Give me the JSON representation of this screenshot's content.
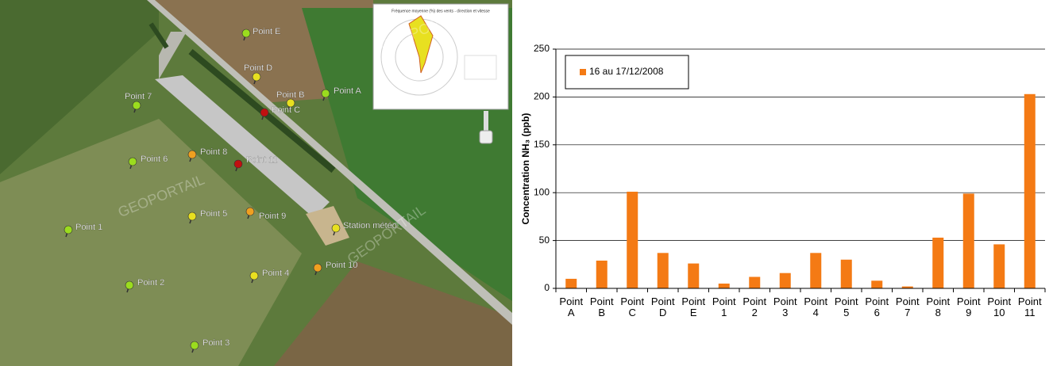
{
  "map": {
    "watermarks": [
      "GEOPORTAIL",
      "GEOPORTAIL",
      "GEOPORTAIL"
    ],
    "inset_title": "Fréquence moyenne (%) des vents - direction et vitesse",
    "labels": [
      {
        "text": "Point E",
        "color": "#9bdc1e"
      },
      {
        "text": "Point D",
        "color": "#e8e020"
      },
      {
        "text": "Point B",
        "color": "#e8e020"
      },
      {
        "text": "Point A",
        "color": "#9bdc1e"
      },
      {
        "text": "Point C",
        "color": "#c01010"
      },
      {
        "text": "Point 7",
        "color": "#9bdc1e"
      },
      {
        "text": "Point 8",
        "color": "#f0a020"
      },
      {
        "text": "Point 11",
        "color": "#c01010"
      },
      {
        "text": "Point 6",
        "color": "#9bdc1e"
      },
      {
        "text": "Point 5",
        "color": "#e8e020"
      },
      {
        "text": "Point 9",
        "color": "#f0a020"
      },
      {
        "text": "Station météo",
        "color": "#e8e020"
      },
      {
        "text": "Point 1",
        "color": "#9bdc1e"
      },
      {
        "text": "Point 10",
        "color": "#f0a020"
      },
      {
        "text": "Point 4",
        "color": "#e8e020"
      },
      {
        "text": "Point 2",
        "color": "#9bdc1e"
      },
      {
        "text": "Point 3",
        "color": "#9bdc1e"
      }
    ]
  },
  "chart_data": {
    "type": "bar",
    "y_label": "Concentration NH₃ (ppb)",
    "categories": [
      "Point A",
      "Point B",
      "Point C",
      "Point D",
      "Point E",
      "Point 1",
      "Point 2",
      "Point 3",
      "Point 4",
      "Point 5",
      "Point 6",
      "Point 7",
      "Point 8",
      "Point 9",
      "Point 10",
      "Point 11"
    ],
    "series": [
      {
        "name": "16 au 17/12/2008",
        "color": "#f47a14",
        "values": [
          10,
          29,
          101,
          37,
          26,
          5,
          12,
          16,
          37,
          30,
          8,
          2,
          53,
          99,
          46,
          203
        ]
      }
    ],
    "ylim": [
      0,
      250
    ],
    "yticks": [
      0,
      50,
      100,
      150,
      200,
      250
    ],
    "grid": true,
    "legend": "top-left"
  }
}
